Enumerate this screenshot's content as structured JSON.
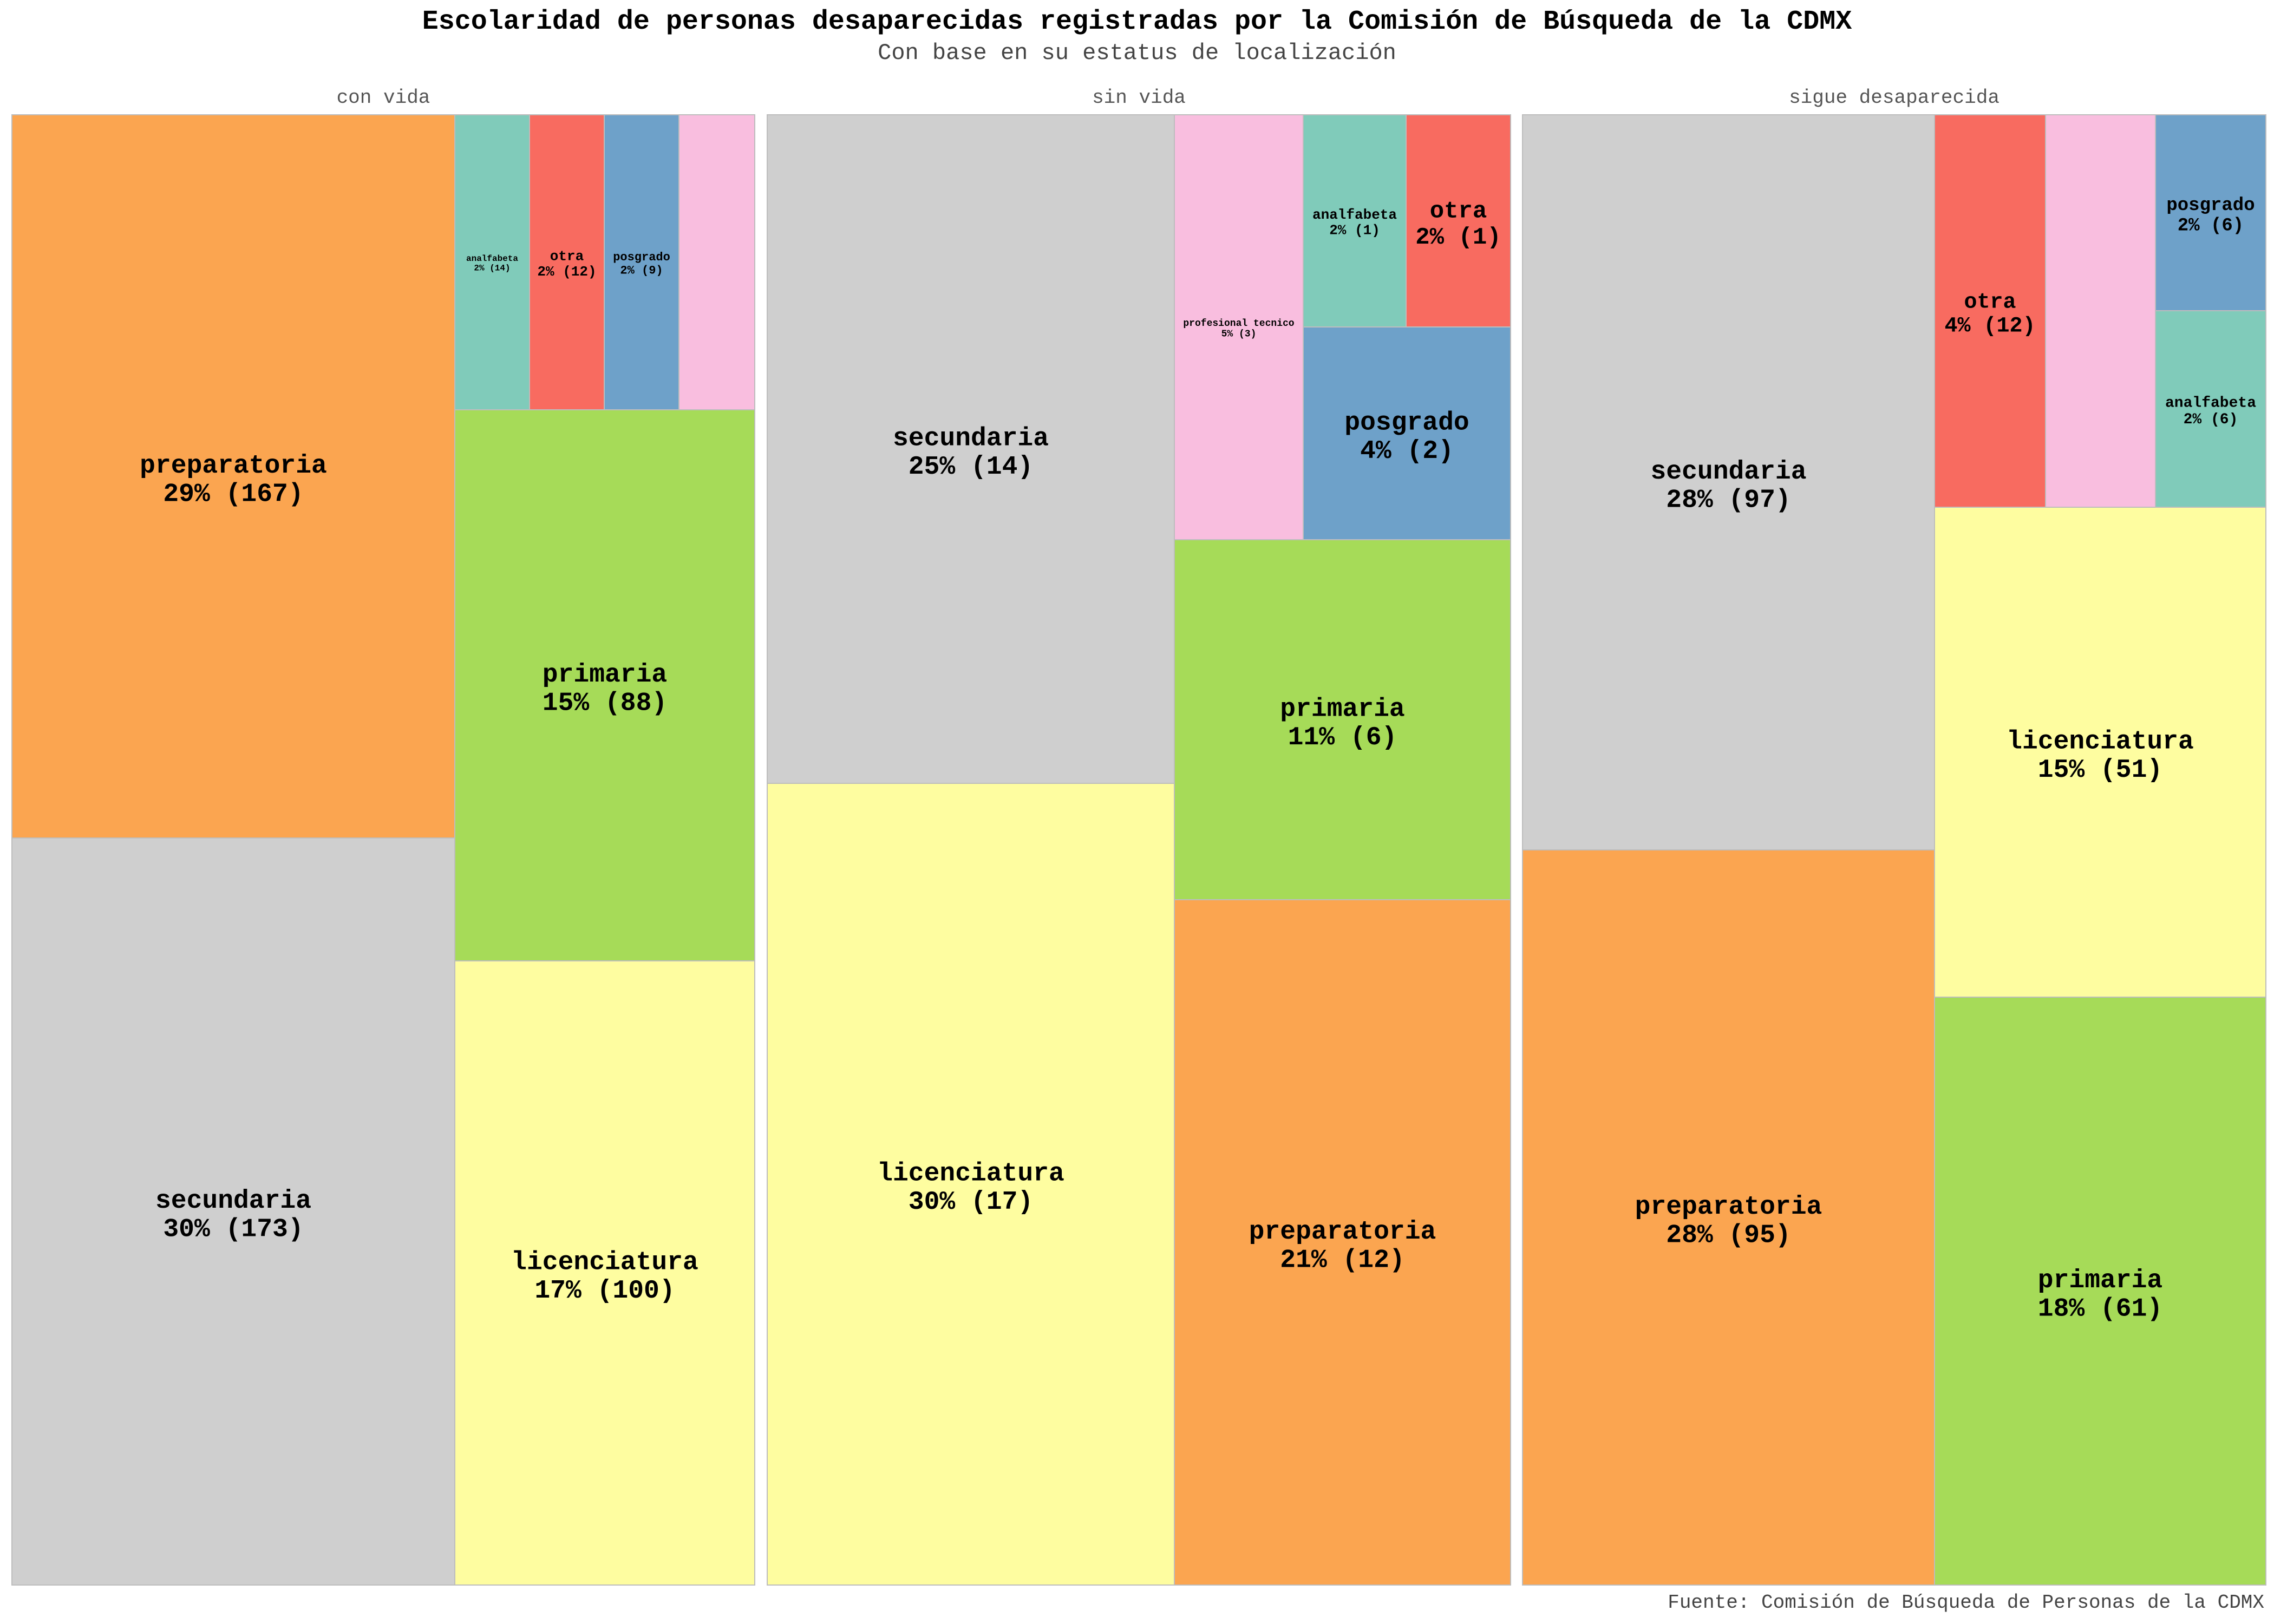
{
  "chart_data": {
    "type": "treemap",
    "title": "Escolaridad de personas desaparecidas registradas por la Comisión de Búsqueda de la CDMX",
    "subtitle": "Con base en su estatus de localización",
    "source": "Fuente: Comisión de Búsqueda de Personas de la CDMX",
    "colors": {
      "secundaria": "#cfcfcf",
      "preparatoria": "#fba550",
      "primaria": "#a6db58",
      "licenciatura": "#fefda0",
      "analfabeta": "#80cbba",
      "otra": "#f86b60",
      "posgrado": "#6ea1c9",
      "profesional tecnico": "#f9bedf"
    },
    "panels": [
      {
        "name": "con vida",
        "cells": [
          {
            "category": "preparatoria",
            "label": "preparatoria",
            "value_label": "29% (167)",
            "value": 167,
            "percent": 29
          },
          {
            "category": "secundaria",
            "label": "secundaria",
            "value_label": "30% (173)",
            "value": 173,
            "percent": 30
          },
          {
            "category": "primaria",
            "label": "primaria",
            "value_label": "15% (88)",
            "value": 88,
            "percent": 15
          },
          {
            "category": "licenciatura",
            "label": "licenciatura",
            "value_label": "17% (100)",
            "value": 100,
            "percent": 17
          },
          {
            "category": "analfabeta",
            "label": "analfabeta",
            "value_label": "2% (14)",
            "value": 14,
            "percent": 2
          },
          {
            "category": "otra",
            "label": "otra",
            "value_label": "2% (12)",
            "value": 12,
            "percent": 2
          },
          {
            "category": "posgrado",
            "label": "posgrado",
            "value_label": "2% (9)",
            "value": 9,
            "percent": 2
          },
          {
            "category": "profesional tecnico",
            "label": "",
            "value_label": ""
          }
        ]
      },
      {
        "name": "sin vida",
        "cells": [
          {
            "category": "secundaria",
            "label": "secundaria",
            "value_label": "25% (14)",
            "value": 14,
            "percent": 25
          },
          {
            "category": "licenciatura",
            "label": "licenciatura",
            "value_label": "30% (17)",
            "value": 17,
            "percent": 30
          },
          {
            "category": "profesional tecnico",
            "label": "profesional tecnico",
            "value_label": "5% (3)",
            "value": 3,
            "percent": 5
          },
          {
            "category": "analfabeta",
            "label": "analfabeta",
            "value_label": "2% (1)",
            "value": 1,
            "percent": 2
          },
          {
            "category": "otra",
            "label": "otra",
            "value_label": "2% (1)",
            "value": 1,
            "percent": 2
          },
          {
            "category": "posgrado",
            "label": "posgrado",
            "value_label": "4% (2)",
            "value": 2,
            "percent": 4
          },
          {
            "category": "primaria",
            "label": "primaria",
            "value_label": "11% (6)",
            "value": 6,
            "percent": 11
          },
          {
            "category": "preparatoria",
            "label": "preparatoria",
            "value_label": "21% (12)",
            "value": 12,
            "percent": 21
          }
        ]
      },
      {
        "name": "sigue desaparecida",
        "cells": [
          {
            "category": "secundaria",
            "label": "secundaria",
            "value_label": "28% (97)",
            "value": 97,
            "percent": 28
          },
          {
            "category": "preparatoria",
            "label": "preparatoria",
            "value_label": "28% (95)",
            "value": 95,
            "percent": 28
          },
          {
            "category": "otra",
            "label": "otra",
            "value_label": "4% (12)",
            "value": 12,
            "percent": 4
          },
          {
            "category": "profesional tecnico",
            "label": "",
            "value_label": ""
          },
          {
            "category": "posgrado",
            "label": "posgrado",
            "value_label": "2% (6)",
            "value": 6,
            "percent": 2
          },
          {
            "category": "analfabeta",
            "label": "analfabeta",
            "value_label": "2% (6)",
            "value": 6,
            "percent": 2
          },
          {
            "category": "licenciatura",
            "label": "licenciatura",
            "value_label": "15% (51)",
            "value": 51,
            "percent": 15
          },
          {
            "category": "primaria",
            "label": "primaria",
            "value_label": "18% (61)",
            "value": 61,
            "percent": 18
          }
        ]
      }
    ]
  }
}
